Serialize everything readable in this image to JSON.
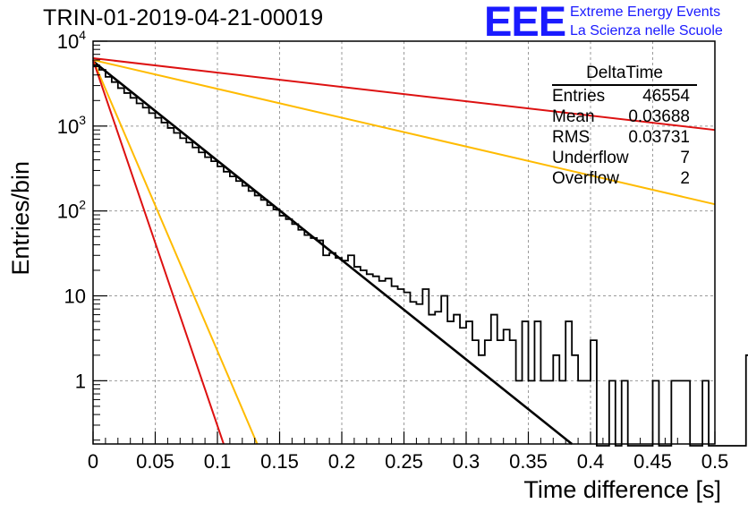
{
  "header": {
    "title": "TRIN-01-2019-04-21-00019",
    "logo_mark": "EEE",
    "logo_line1": "Extreme Energy Events",
    "logo_line2": "La Scienza nelle Scuole"
  },
  "stats": {
    "title": "DeltaTime",
    "rows": [
      {
        "label": "Entries",
        "value": "46554"
      },
      {
        "label": "Mean",
        "value": "0.03688"
      },
      {
        "label": "RMS",
        "value": "0.03731"
      },
      {
        "label": "Underflow",
        "value": "7"
      },
      {
        "label": "Overflow",
        "value": "2"
      }
    ]
  },
  "chart_data": {
    "type": "line",
    "xlabel": "Time difference [s]",
    "ylabel": "Entries/bin",
    "xlim": [
      0,
      0.5
    ],
    "ylim": [
      0.18,
      10000
    ],
    "y_scale": "log",
    "grid": true,
    "x_ticks": [
      "0",
      "0.05",
      "0.1",
      "0.15",
      "0.2",
      "0.25",
      "0.3",
      "0.35",
      "0.4",
      "0.45",
      "0.5"
    ],
    "y_ticks": [
      {
        "value": 1,
        "label": "1"
      },
      {
        "value": 10,
        "label": "10"
      },
      {
        "value": 100,
        "label": "10^2"
      },
      {
        "value": 1000,
        "label": "10^3"
      },
      {
        "value": 10000,
        "label": "10^4"
      }
    ],
    "histogram": {
      "bin_width": 0.005,
      "color": "#000000",
      "counts": [
        5200,
        4600,
        3800,
        3300,
        2800,
        2450,
        2150,
        1850,
        1650,
        1420,
        1250,
        1100,
        950,
        830,
        720,
        640,
        560,
        490,
        430,
        385,
        335,
        290,
        255,
        225,
        198,
        172,
        152,
        135,
        117,
        104,
        88,
        80,
        70,
        60,
        52,
        48,
        45,
        30,
        32,
        28,
        26,
        30,
        22,
        20,
        18,
        17,
        15,
        16,
        13,
        12,
        11,
        8.5,
        8,
        12,
        6,
        6.5,
        10,
        5,
        6,
        4.2,
        5,
        3,
        2,
        3,
        6,
        3,
        4,
        3,
        1,
        5,
        1,
        5,
        1,
        1,
        2,
        1,
        5,
        2,
        1,
        1,
        3,
        0,
        0,
        1,
        0,
        1,
        0,
        0,
        0,
        0,
        1,
        0,
        0,
        1,
        1,
        1,
        0,
        0,
        1,
        0,
        0,
        0,
        0,
        0,
        0,
        2,
        1,
        0,
        0,
        0
      ]
    },
    "series": [
      {
        "color": "#000000",
        "points": [
          [
            0,
            5800
          ],
          [
            0.385,
            0.18
          ]
        ]
      },
      {
        "color": "#dd1111",
        "points": [
          [
            0,
            6300
          ],
          [
            0.5,
            900
          ]
        ]
      },
      {
        "color": "#ffbb00",
        "points": [
          [
            0,
            6000
          ],
          [
            0.5,
            120
          ]
        ]
      },
      {
        "color": "#ffbb00",
        "points": [
          [
            0,
            6000
          ],
          [
            0.132,
            0.18
          ]
        ]
      },
      {
        "color": "#dd1111",
        "points": [
          [
            0,
            6000
          ],
          [
            0.105,
            0.18
          ]
        ]
      }
    ]
  }
}
